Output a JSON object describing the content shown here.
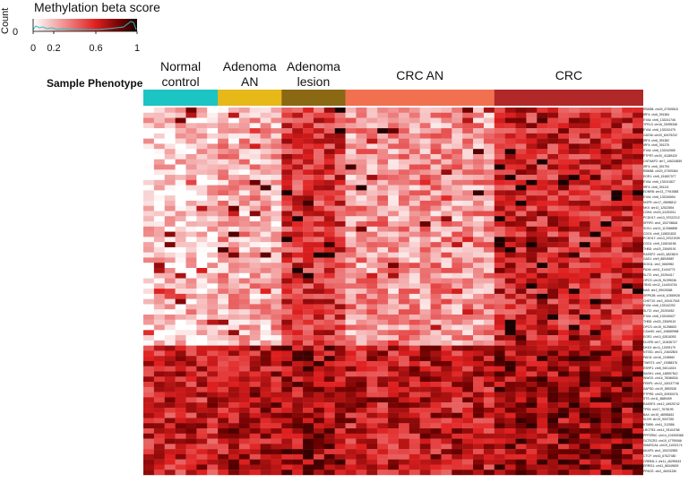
{
  "legend": {
    "title": "Methylation beta score",
    "ylabel": "Count",
    "count_zero": "0",
    "ticks": [
      "0",
      "0.2",
      "0.6",
      "1"
    ],
    "tick_values": [
      0,
      0.2,
      0.6,
      1
    ],
    "gradient_colors": [
      "#ffffff",
      "#f08080",
      "#e8202a",
      "#7a0000",
      "#2a0000"
    ]
  },
  "phenotype_label": "Sample Phenotype",
  "chart_data": {
    "type": "heatmap",
    "title": "",
    "xlabel": "",
    "ylabel": "",
    "value_range": [
      0,
      1
    ],
    "groups": [
      {
        "name": "Normal\ncontrol",
        "label_lines": [
          "Normal",
          "control"
        ],
        "n": 7,
        "color": "#1cc4c4"
      },
      {
        "name": "Adenoma AN",
        "label_lines": [
          "Adenoma",
          "AN"
        ],
        "n": 6,
        "color": "#e6b818"
      },
      {
        "name": "Adenoma lesion",
        "label_lines": [
          "Adenoma",
          "lesion"
        ],
        "n": 6,
        "color": "#8a6814"
      },
      {
        "name": "CRC AN",
        "label_lines": [
          "CRC AN"
        ],
        "n": 14,
        "color": "#f07050"
      },
      {
        "name": "CRC",
        "label_lines": [
          "CRC"
        ],
        "n": 14,
        "color": "#b02828"
      }
    ],
    "row_labels": [
      "RBM38: chr20_57305518",
      "IRF4: chr6_391384",
      "EYA4: chr6_133241746",
      "YPEL3: chr16_30095268",
      "EYA4: chr6_133242475",
      "GATA6: chr20_62475232",
      "IRF4: chr6_391382",
      "IRF4: chr6_391375",
      "EYA4: chr6_133242565",
      "PTPRT: chr20_41189420",
      "CNTNAP2: chr7_146216839",
      "IRF4: chr6_391794",
      "RBM38: chr20_57309364",
      "EGR1: chr5_151807077",
      "EYA4: chr6_133241827",
      "IRF4: chr6_391121",
      "EDNRB: chr13_77919388",
      "EYA4: chr6_133240654",
      "NGFR: chr17_49496812",
      "NKX: chr10_12522694",
      "CDH4: chr20_61253011",
      "PCDH17: chr13_57022212",
      "SFRP2: chr4_153708818",
      "SOX1: chr13_112066858",
      "CDO1: chr5_115831833",
      "PCDH17: chr13_57021939",
      "CDO1: chr5_115816156",
      "THBD: chr20_23069191",
      "RASSF2: chr20_4823819",
      "GAS1: chr9_88945587",
      "SOX11: chr2_5660962",
      "PAX6: chr11_31444774",
      "SLIT2: chr4_20254417",
      "OPCS: chr15_91299036",
      "TBX5: chr12_114404746",
      "NAS: chr2_99025368",
      "SRPK2B: chr16_10355928",
      "CHST10: chr3_100417518",
      "EYA4: chr6_133242292",
      "SLIT2: chr4_20253052",
      "EYA4: chr6_133240627",
      "THBD: chr20_23069119",
      "OPCS: chr15_91298653",
      "C2orf40: chr2_106680968",
      "EGR2: chr10_62818393",
      "DLSP8: chr7_115436727",
      "DKK3: chr11_12009179",
      "NTSS1: chr21_24602803",
      "PADI1: chr16_2165560",
      "TWIST1: chr7_19088376",
      "ESRP1: chr8_94014015",
      "SASH1: chr6_148557542",
      "WWOX: chr16_78086534",
      "FEBP1: chr12_118137748",
      "SAPSD: chr19_5592535",
      "PTPRS: chr20_50930076",
      "STS: chr11_8689459",
      "RASSF3: chr12_64925742",
      "TP53: chr17_7678199",
      "BAX: chr19_48955453",
      "SUV9: chr19_9007330",
      "KTM5K: chr11_312586",
      "LRCTR3: chr14_93104768",
      "PPP2R5C: chr14_101905368",
      "GLTSCR2: chr19_47799066",
      "SMARCA4: chr19_11002174",
      "AKAP3: chr4_150232583",
      "CTCF: chr16_67627480",
      "CREB3L1: chr11_46259433",
      "ERRIS1: chr11_86349639",
      "PRKCE: chr2_46001330"
    ],
    "n_rows": 71,
    "n_cols": 47,
    "values_note": ""
  }
}
